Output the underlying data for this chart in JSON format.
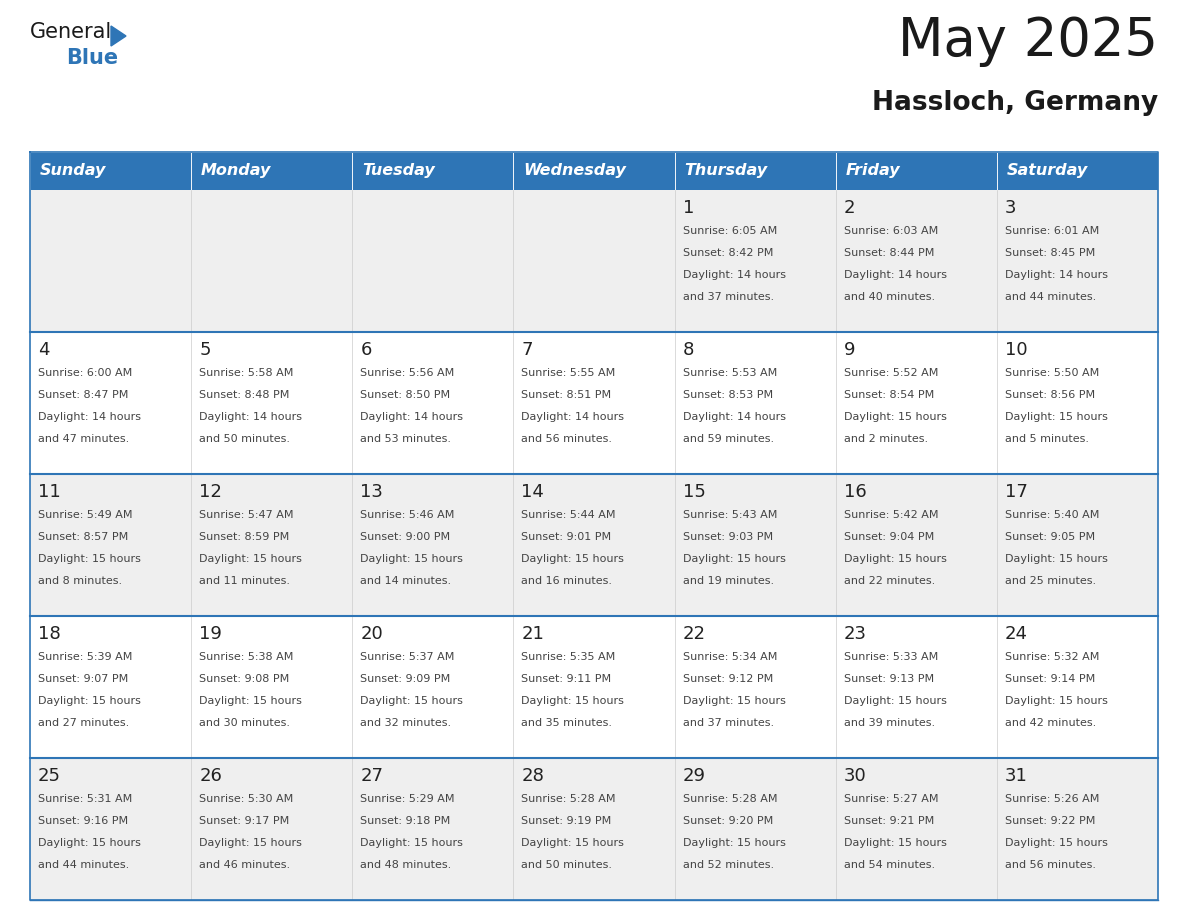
{
  "title": "May 2025",
  "subtitle": "Hassloch, Germany",
  "header_bg": "#2E75B6",
  "header_text_color": "#FFFFFF",
  "day_names": [
    "Sunday",
    "Monday",
    "Tuesday",
    "Wednesday",
    "Thursday",
    "Friday",
    "Saturday"
  ],
  "cell_bg_odd": "#EFEFEF",
  "cell_bg_even": "#FFFFFF",
  "cell_border_top_color": "#2E75B6",
  "day_number_color": "#222222",
  "info_text_color": "#444444",
  "title_color": "#1A1A1A",
  "subtitle_color": "#1A1A1A",
  "logo_general_color": "#1A1A1A",
  "logo_blue_color": "#2E75B6",
  "weeks": [
    [
      {
        "day": null,
        "info": ""
      },
      {
        "day": null,
        "info": ""
      },
      {
        "day": null,
        "info": ""
      },
      {
        "day": null,
        "info": ""
      },
      {
        "day": 1,
        "info": "Sunrise: 6:05 AM\nSunset: 8:42 PM\nDaylight: 14 hours\nand 37 minutes."
      },
      {
        "day": 2,
        "info": "Sunrise: 6:03 AM\nSunset: 8:44 PM\nDaylight: 14 hours\nand 40 minutes."
      },
      {
        "day": 3,
        "info": "Sunrise: 6:01 AM\nSunset: 8:45 PM\nDaylight: 14 hours\nand 44 minutes."
      }
    ],
    [
      {
        "day": 4,
        "info": "Sunrise: 6:00 AM\nSunset: 8:47 PM\nDaylight: 14 hours\nand 47 minutes."
      },
      {
        "day": 5,
        "info": "Sunrise: 5:58 AM\nSunset: 8:48 PM\nDaylight: 14 hours\nand 50 minutes."
      },
      {
        "day": 6,
        "info": "Sunrise: 5:56 AM\nSunset: 8:50 PM\nDaylight: 14 hours\nand 53 minutes."
      },
      {
        "day": 7,
        "info": "Sunrise: 5:55 AM\nSunset: 8:51 PM\nDaylight: 14 hours\nand 56 minutes."
      },
      {
        "day": 8,
        "info": "Sunrise: 5:53 AM\nSunset: 8:53 PM\nDaylight: 14 hours\nand 59 minutes."
      },
      {
        "day": 9,
        "info": "Sunrise: 5:52 AM\nSunset: 8:54 PM\nDaylight: 15 hours\nand 2 minutes."
      },
      {
        "day": 10,
        "info": "Sunrise: 5:50 AM\nSunset: 8:56 PM\nDaylight: 15 hours\nand 5 minutes."
      }
    ],
    [
      {
        "day": 11,
        "info": "Sunrise: 5:49 AM\nSunset: 8:57 PM\nDaylight: 15 hours\nand 8 minutes."
      },
      {
        "day": 12,
        "info": "Sunrise: 5:47 AM\nSunset: 8:59 PM\nDaylight: 15 hours\nand 11 minutes."
      },
      {
        "day": 13,
        "info": "Sunrise: 5:46 AM\nSunset: 9:00 PM\nDaylight: 15 hours\nand 14 minutes."
      },
      {
        "day": 14,
        "info": "Sunrise: 5:44 AM\nSunset: 9:01 PM\nDaylight: 15 hours\nand 16 minutes."
      },
      {
        "day": 15,
        "info": "Sunrise: 5:43 AM\nSunset: 9:03 PM\nDaylight: 15 hours\nand 19 minutes."
      },
      {
        "day": 16,
        "info": "Sunrise: 5:42 AM\nSunset: 9:04 PM\nDaylight: 15 hours\nand 22 minutes."
      },
      {
        "day": 17,
        "info": "Sunrise: 5:40 AM\nSunset: 9:05 PM\nDaylight: 15 hours\nand 25 minutes."
      }
    ],
    [
      {
        "day": 18,
        "info": "Sunrise: 5:39 AM\nSunset: 9:07 PM\nDaylight: 15 hours\nand 27 minutes."
      },
      {
        "day": 19,
        "info": "Sunrise: 5:38 AM\nSunset: 9:08 PM\nDaylight: 15 hours\nand 30 minutes."
      },
      {
        "day": 20,
        "info": "Sunrise: 5:37 AM\nSunset: 9:09 PM\nDaylight: 15 hours\nand 32 minutes."
      },
      {
        "day": 21,
        "info": "Sunrise: 5:35 AM\nSunset: 9:11 PM\nDaylight: 15 hours\nand 35 minutes."
      },
      {
        "day": 22,
        "info": "Sunrise: 5:34 AM\nSunset: 9:12 PM\nDaylight: 15 hours\nand 37 minutes."
      },
      {
        "day": 23,
        "info": "Sunrise: 5:33 AM\nSunset: 9:13 PM\nDaylight: 15 hours\nand 39 minutes."
      },
      {
        "day": 24,
        "info": "Sunrise: 5:32 AM\nSunset: 9:14 PM\nDaylight: 15 hours\nand 42 minutes."
      }
    ],
    [
      {
        "day": 25,
        "info": "Sunrise: 5:31 AM\nSunset: 9:16 PM\nDaylight: 15 hours\nand 44 minutes."
      },
      {
        "day": 26,
        "info": "Sunrise: 5:30 AM\nSunset: 9:17 PM\nDaylight: 15 hours\nand 46 minutes."
      },
      {
        "day": 27,
        "info": "Sunrise: 5:29 AM\nSunset: 9:18 PM\nDaylight: 15 hours\nand 48 minutes."
      },
      {
        "day": 28,
        "info": "Sunrise: 5:28 AM\nSunset: 9:19 PM\nDaylight: 15 hours\nand 50 minutes."
      },
      {
        "day": 29,
        "info": "Sunrise: 5:28 AM\nSunset: 9:20 PM\nDaylight: 15 hours\nand 52 minutes."
      },
      {
        "day": 30,
        "info": "Sunrise: 5:27 AM\nSunset: 9:21 PM\nDaylight: 15 hours\nand 54 minutes."
      },
      {
        "day": 31,
        "info": "Sunrise: 5:26 AM\nSunset: 9:22 PM\nDaylight: 15 hours\nand 56 minutes."
      }
    ]
  ]
}
